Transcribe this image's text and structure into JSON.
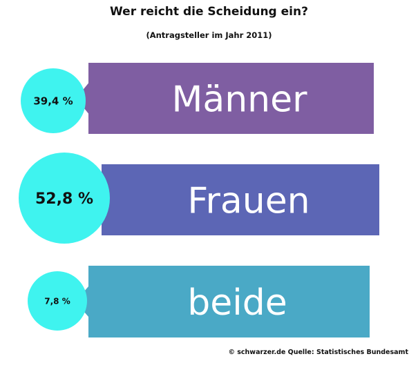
{
  "title": "Wer reicht die Scheidung ein?",
  "subtitle": "(Antragsteller im Jahr 2011)",
  "source": "© schwarzer.de Quelle: Statistisches Bundesamt",
  "chart_data": {
    "type": "bar",
    "title": "Wer reicht die Scheidung ein?",
    "subtitle": "(Antragsteller im Jahr 2011)",
    "categories": [
      "Männer",
      "Frauen",
      "beide"
    ],
    "values": [
      39.4,
      52.8,
      7.8
    ],
    "value_labels": [
      "39,4 %",
      "52,8 %",
      "7,8 %"
    ],
    "unit": "%",
    "colors": [
      "#7f5ea2",
      "#5c66b5",
      "#4aa9c6"
    ],
    "circle_color": "#3ff3ef"
  }
}
